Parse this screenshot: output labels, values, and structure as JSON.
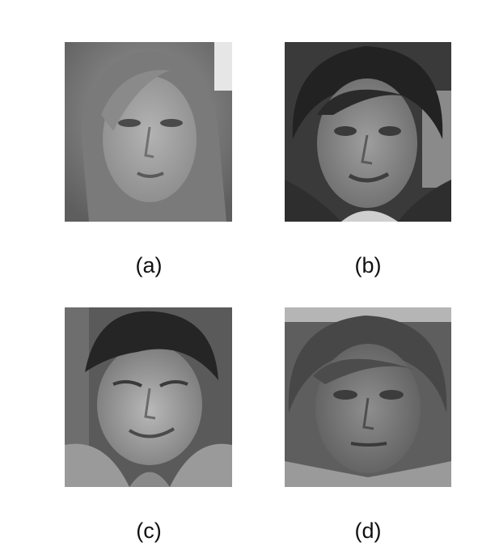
{
  "panels": [
    {
      "id": "a",
      "caption": "(a)"
    },
    {
      "id": "b",
      "caption": "(b)"
    },
    {
      "id": "c",
      "caption": "(c)"
    },
    {
      "id": "d",
      "caption": "(d)"
    }
  ],
  "colors": {
    "background": "#ffffff",
    "caption_text": "#111111"
  }
}
